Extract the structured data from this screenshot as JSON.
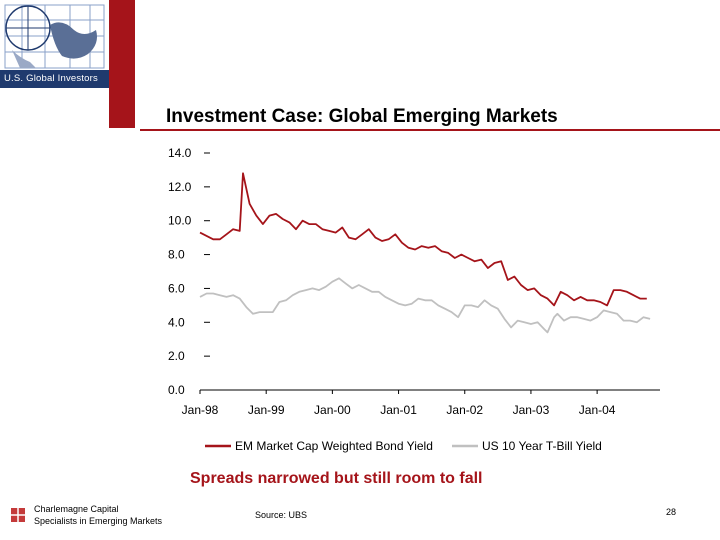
{
  "header": {
    "logo_text": "U.S. Global Investors",
    "title": "Investment Case: Global Emerging Markets"
  },
  "chart_data": {
    "type": "line",
    "title": "",
    "xlabel": "",
    "ylabel": "",
    "ylim": [
      0,
      14
    ],
    "y_ticks": [
      "14.0",
      "12.0",
      "10.0",
      "8.0",
      "6.0",
      "4.0",
      "2.0",
      "0.0"
    ],
    "x_ticks": [
      "Jan-98",
      "Jan-99",
      "Jan-00",
      "Jan-01",
      "Jan-02",
      "Jan-03",
      "Jan-04"
    ],
    "x_range": [
      1998.0,
      2004.95
    ],
    "legend_position": "bottom",
    "colors": {
      "em": "#a5141a",
      "us": "#c0c0c0",
      "axis": "#000000"
    },
    "series": [
      {
        "name": "EM Market Cap Weighted Bond Yield",
        "points": [
          [
            1998.0,
            9.3
          ],
          [
            1998.1,
            9.1
          ],
          [
            1998.2,
            8.9
          ],
          [
            1998.3,
            8.9
          ],
          [
            1998.4,
            9.2
          ],
          [
            1998.5,
            9.5
          ],
          [
            1998.6,
            9.4
          ],
          [
            1998.65,
            12.8
          ],
          [
            1998.75,
            11.0
          ],
          [
            1998.85,
            10.3
          ],
          [
            1998.95,
            9.8
          ],
          [
            1999.05,
            10.3
          ],
          [
            1999.15,
            10.4
          ],
          [
            1999.25,
            10.1
          ],
          [
            1999.35,
            9.9
          ],
          [
            1999.45,
            9.5
          ],
          [
            1999.55,
            10.0
          ],
          [
            1999.65,
            9.8
          ],
          [
            1999.75,
            9.8
          ],
          [
            1999.85,
            9.5
          ],
          [
            1999.95,
            9.4
          ],
          [
            2000.05,
            9.3
          ],
          [
            2000.15,
            9.6
          ],
          [
            2000.25,
            9.0
          ],
          [
            2000.35,
            8.9
          ],
          [
            2000.45,
            9.2
          ],
          [
            2000.55,
            9.5
          ],
          [
            2000.65,
            9.0
          ],
          [
            2000.75,
            8.8
          ],
          [
            2000.85,
            8.9
          ],
          [
            2000.95,
            9.2
          ],
          [
            2001.05,
            8.7
          ],
          [
            2001.15,
            8.4
          ],
          [
            2001.25,
            8.3
          ],
          [
            2001.35,
            8.5
          ],
          [
            2001.45,
            8.4
          ],
          [
            2001.55,
            8.5
          ],
          [
            2001.65,
            8.2
          ],
          [
            2001.75,
            8.1
          ],
          [
            2001.85,
            7.8
          ],
          [
            2001.95,
            8.0
          ],
          [
            2002.05,
            7.8
          ],
          [
            2002.15,
            7.6
          ],
          [
            2002.25,
            7.7
          ],
          [
            2002.35,
            7.2
          ],
          [
            2002.45,
            7.5
          ],
          [
            2002.55,
            7.6
          ],
          [
            2002.65,
            6.5
          ],
          [
            2002.75,
            6.7
          ],
          [
            2002.85,
            6.2
          ],
          [
            2002.95,
            5.9
          ],
          [
            2003.05,
            6.0
          ],
          [
            2003.15,
            5.6
          ],
          [
            2003.25,
            5.4
          ],
          [
            2003.35,
            5.0
          ],
          [
            2003.45,
            5.8
          ],
          [
            2003.55,
            5.6
          ],
          [
            2003.65,
            5.3
          ],
          [
            2003.75,
            5.5
          ],
          [
            2003.85,
            5.3
          ],
          [
            2003.95,
            5.3
          ],
          [
            2004.05,
            5.2
          ],
          [
            2004.15,
            5.0
          ],
          [
            2004.25,
            5.9
          ],
          [
            2004.35,
            5.9
          ],
          [
            2004.45,
            5.8
          ],
          [
            2004.55,
            5.6
          ],
          [
            2004.65,
            5.4
          ],
          [
            2004.75,
            5.4
          ]
        ]
      },
      {
        "name": "US 10 Year T-Bill Yield",
        "points": [
          [
            1998.0,
            5.5
          ],
          [
            1998.1,
            5.7
          ],
          [
            1998.2,
            5.7
          ],
          [
            1998.3,
            5.6
          ],
          [
            1998.4,
            5.5
          ],
          [
            1998.5,
            5.6
          ],
          [
            1998.6,
            5.4
          ],
          [
            1998.7,
            4.9
          ],
          [
            1998.8,
            4.5
          ],
          [
            1998.9,
            4.6
          ],
          [
            1999.0,
            4.6
          ],
          [
            1999.1,
            4.6
          ],
          [
            1999.2,
            5.2
          ],
          [
            1999.3,
            5.3
          ],
          [
            1999.4,
            5.6
          ],
          [
            1999.5,
            5.8
          ],
          [
            1999.6,
            5.9
          ],
          [
            1999.7,
            6.0
          ],
          [
            1999.8,
            5.9
          ],
          [
            1999.9,
            6.1
          ],
          [
            2000.0,
            6.4
          ],
          [
            2000.1,
            6.6
          ],
          [
            2000.2,
            6.3
          ],
          [
            2000.3,
            6.0
          ],
          [
            2000.4,
            6.2
          ],
          [
            2000.5,
            6.0
          ],
          [
            2000.6,
            5.8
          ],
          [
            2000.7,
            5.8
          ],
          [
            2000.8,
            5.5
          ],
          [
            2000.9,
            5.3
          ],
          [
            2001.0,
            5.1
          ],
          [
            2001.1,
            5.0
          ],
          [
            2001.2,
            5.1
          ],
          [
            2001.3,
            5.4
          ],
          [
            2001.4,
            5.3
          ],
          [
            2001.5,
            5.3
          ],
          [
            2001.6,
            5.0
          ],
          [
            2001.7,
            4.8
          ],
          [
            2001.8,
            4.6
          ],
          [
            2001.9,
            4.3
          ],
          [
            2002.0,
            5.0
          ],
          [
            2002.1,
            5.0
          ],
          [
            2002.2,
            4.9
          ],
          [
            2002.3,
            5.3
          ],
          [
            2002.4,
            5.0
          ],
          [
            2002.5,
            4.8
          ],
          [
            2002.6,
            4.2
          ],
          [
            2002.7,
            3.7
          ],
          [
            2002.8,
            4.1
          ],
          [
            2002.9,
            4.0
          ],
          [
            2003.0,
            3.9
          ],
          [
            2003.1,
            4.0
          ],
          [
            2003.2,
            3.6
          ],
          [
            2003.25,
            3.4
          ],
          [
            2003.35,
            4.3
          ],
          [
            2003.4,
            4.5
          ],
          [
            2003.5,
            4.1
          ],
          [
            2003.6,
            4.3
          ],
          [
            2003.7,
            4.3
          ],
          [
            2003.8,
            4.2
          ],
          [
            2003.9,
            4.1
          ],
          [
            2004.0,
            4.3
          ],
          [
            2004.1,
            4.7
          ],
          [
            2004.2,
            4.6
          ],
          [
            2004.3,
            4.5
          ],
          [
            2004.4,
            4.1
          ],
          [
            2004.5,
            4.1
          ],
          [
            2004.6,
            4.0
          ],
          [
            2004.7,
            4.3
          ],
          [
            2004.8,
            4.2
          ]
        ]
      }
    ]
  },
  "subtitle": "Spreads narrowed but still room to fall",
  "footer": {
    "company_line1": "Charlemagne Capital",
    "company_line2": "Specialists in Emerging Markets",
    "source": "Source:  UBS",
    "page_number": "28"
  }
}
